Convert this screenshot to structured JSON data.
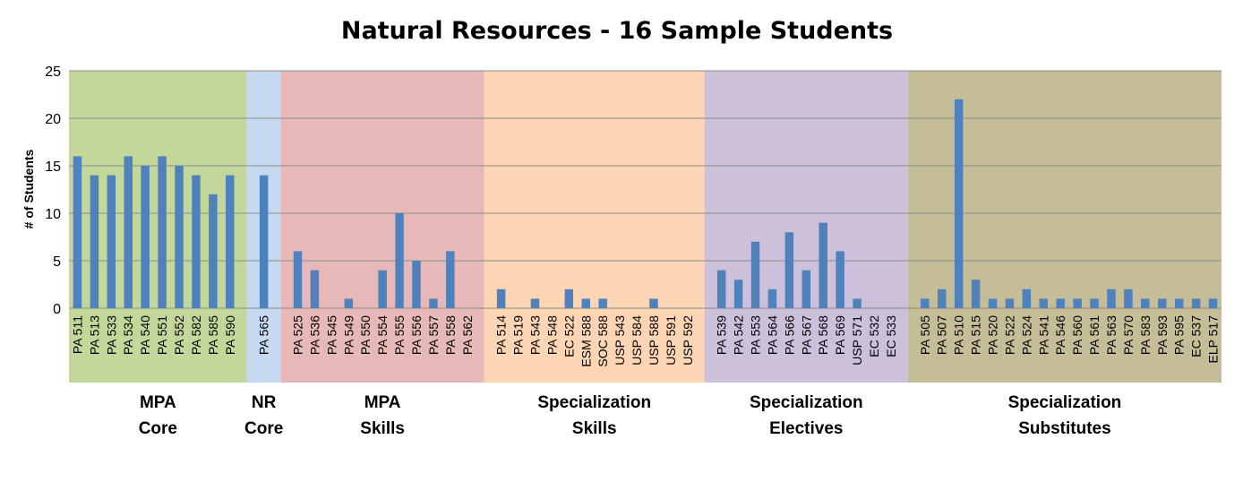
{
  "chart_data": {
    "type": "bar",
    "title": "Natural Resources - 16 Sample Students",
    "ylabel": "# of Students",
    "xlabel": "",
    "ylim": [
      0,
      25
    ],
    "yticks": [
      "0",
      "5",
      "10",
      "15",
      "20",
      "25"
    ],
    "grid": true,
    "legend": "none",
    "bar_color": "#4f81bd",
    "groups": [
      {
        "line1": "MPA",
        "line2": "Core",
        "color": "#c4d79b",
        "categories": [
          "PA 511",
          "PA 513",
          "PA 533",
          "PA 534",
          "PA 540",
          "PA 551",
          "PA 552",
          "PA 582",
          "PA 585",
          "PA 590"
        ],
        "values": [
          16,
          14,
          14,
          16,
          15,
          16,
          15,
          14,
          12,
          14
        ]
      },
      {
        "line1": "NR",
        "line2": "Core",
        "color": "#c5d9f1",
        "categories": [
          "PA 565"
        ],
        "values": [
          14
        ]
      },
      {
        "line1": "MPA",
        "line2": "Skills",
        "color": "#e6b9b8",
        "categories": [
          "PA 525",
          "PA 536",
          "PA 545",
          "PA 549",
          "PA 550",
          "PA 554",
          "PA 555",
          "PA 556",
          "PA 557",
          "PA 558",
          "PA 562"
        ],
        "values": [
          6,
          4,
          0,
          1,
          0,
          4,
          10,
          5,
          1,
          6,
          0
        ]
      },
      {
        "line1": "Specialization",
        "line2": "Skills",
        "color": "#fcd5b4",
        "categories": [
          "PA 514",
          "PA 519",
          "PA 543",
          "PA 548",
          "EC 522",
          "ESM 588",
          "SOC 588",
          "USP 543",
          "USP 584",
          "USP 588",
          "USP 591",
          "USP 592"
        ],
        "values": [
          2,
          0,
          1,
          0,
          2,
          1,
          1,
          0,
          0,
          1,
          0,
          0
        ]
      },
      {
        "line1": "Specialization",
        "line2": "Electives",
        "color": "#ccc0da",
        "categories": [
          "PA 539",
          "PA 542",
          "PA 553",
          "PA 564",
          "PA 566",
          "PA 567",
          "PA 568",
          "PA 569",
          "USP 571",
          "EC 532",
          "EC 533"
        ],
        "values": [
          4,
          3,
          7,
          2,
          8,
          4,
          9,
          6,
          1,
          0,
          0
        ]
      },
      {
        "line1": "Specialization",
        "line2": "Substitutes",
        "color": "#c4bd97",
        "categories": [
          "PA 505",
          "PA 507",
          "PA 510",
          "PA 515",
          "PA 520",
          "PA 522",
          "PA 524",
          "PA 541",
          "PA 546",
          "PA 560",
          "PA 561",
          "PA 563",
          "PA 570",
          "PA 583",
          "PA 593",
          "PA 595",
          "EC 537",
          "ELP 517"
        ],
        "values": [
          1,
          2,
          22,
          3,
          1,
          1,
          2,
          1,
          1,
          1,
          1,
          2,
          2,
          1,
          1,
          1,
          1,
          1
        ]
      }
    ]
  }
}
